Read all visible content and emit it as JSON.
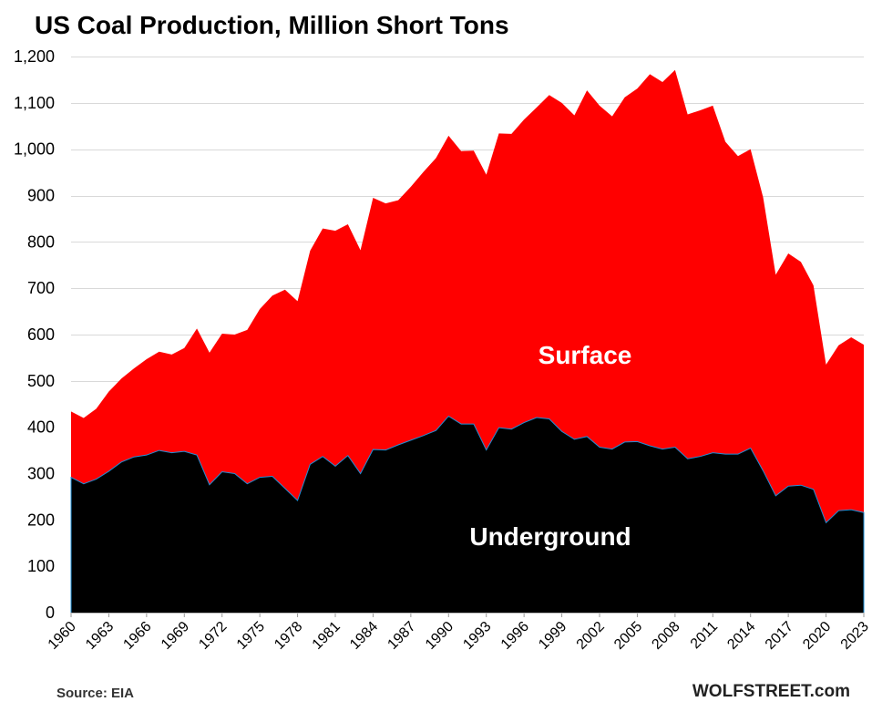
{
  "chart_data": {
    "type": "area",
    "stacked": true,
    "title": "US Coal Production, Million Short Tons",
    "xlabel": "",
    "ylabel": "",
    "ylim": [
      0,
      1200
    ],
    "yticks": [
      0,
      100,
      200,
      300,
      400,
      500,
      600,
      700,
      800,
      900,
      1000,
      1100,
      1200
    ],
    "ytick_labels": [
      "0",
      "100",
      "200",
      "300",
      "400",
      "500",
      "600",
      "700",
      "800",
      "900",
      "1,000",
      "1,100",
      "1,200"
    ],
    "x": [
      1960,
      1961,
      1962,
      1963,
      1964,
      1965,
      1966,
      1967,
      1968,
      1969,
      1970,
      1971,
      1972,
      1973,
      1974,
      1975,
      1976,
      1977,
      1978,
      1979,
      1980,
      1981,
      1982,
      1983,
      1984,
      1985,
      1986,
      1987,
      1988,
      1989,
      1990,
      1991,
      1992,
      1993,
      1994,
      1995,
      1996,
      1997,
      1998,
      1999,
      2000,
      2001,
      2002,
      2003,
      2004,
      2005,
      2006,
      2007,
      2008,
      2009,
      2010,
      2011,
      2012,
      2013,
      2014,
      2015,
      2016,
      2017,
      2018,
      2019,
      2020,
      2021,
      2022,
      2023
    ],
    "xticks": [
      1960,
      1963,
      1966,
      1969,
      1972,
      1975,
      1978,
      1981,
      1984,
      1987,
      1990,
      1993,
      1996,
      1999,
      2002,
      2005,
      2008,
      2011,
      2014,
      2017,
      2020,
      2023
    ],
    "xtick_labels": [
      "1960",
      "1963",
      "1966",
      "1969",
      "1972",
      "1975",
      "1978",
      "1981",
      "1984",
      "1987",
      "1990",
      "1993",
      "1996",
      "1999",
      "2002",
      "2005",
      "2008",
      "2011",
      "2014",
      "2017",
      "2020",
      "2023"
    ],
    "series": [
      {
        "name": "Underground",
        "label": "Underground",
        "color": "#000000",
        "outline": "#1f8fd6",
        "values": [
          292,
          278,
          288,
          305,
          325,
          336,
          340,
          350,
          345,
          348,
          340,
          276,
          304,
          300,
          278,
          292,
          294,
          268,
          242,
          320,
          337,
          316,
          339,
          300,
          352,
          351,
          362,
          372,
          382,
          393,
          424,
          407,
          407,
          351,
          399,
          396,
          410,
          421,
          418,
          391,
          374,
          380,
          357,
          353,
          368,
          369,
          360,
          353,
          357,
          332,
          337,
          345,
          342,
          342,
          355,
          306,
          252,
          273,
          275,
          266,
          194,
          220,
          222,
          216
        ]
      },
      {
        "name": "Surface",
        "label": "Surface",
        "color": "#ff0000",
        "values": [
          142,
          142,
          152,
          172,
          180,
          191,
          207,
          213,
          212,
          223,
          273,
          285,
          298,
          300,
          332,
          363,
          390,
          429,
          430,
          461,
          492,
          508,
          499,
          482,
          543,
          532,
          528,
          547,
          569,
          588,
          605,
          589,
          590,
          594,
          635,
          637,
          654,
          669,
          699,
          709,
          699,
          747,
          737,
          718,
          744,
          762,
          802,
          792,
          814,
          743,
          747,
          749,
          674,
          643,
          645,
          590,
          477,
          502,
          482,
          440,
          341,
          357,
          372,
          362
        ]
      }
    ]
  },
  "source": "Source: EIA",
  "brand": "WOLFSTREET.com"
}
